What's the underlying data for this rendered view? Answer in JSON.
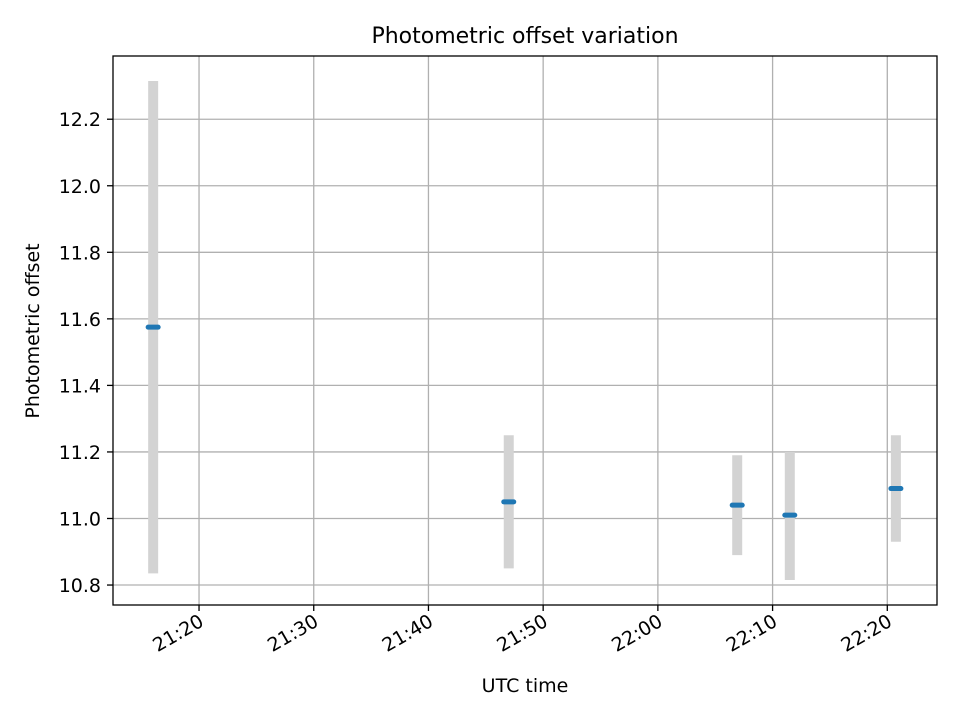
{
  "chart_data": {
    "type": "scatter",
    "title": "Photometric offset variation",
    "xlabel": "UTC time",
    "ylabel": "Photometric offset",
    "x_range": [
      "21:12:30",
      "22:24:20"
    ],
    "ylim": [
      10.74,
      12.39
    ],
    "x_ticks": [
      "21:20",
      "21:30",
      "21:40",
      "21:50",
      "22:00",
      "22:10",
      "22:20"
    ],
    "y_ticks": [
      "10.8",
      "11.0",
      "11.2",
      "11.4",
      "11.6",
      "11.8",
      "12.0",
      "12.2"
    ],
    "grid": true,
    "points": [
      {
        "time": "21:16:00",
        "offset": 11.575,
        "err_low": 10.835,
        "err_high": 12.315
      },
      {
        "time": "21:47:00",
        "offset": 11.05,
        "err_low": 10.85,
        "err_high": 11.25
      },
      {
        "time": "22:06:55",
        "offset": 11.04,
        "err_low": 10.89,
        "err_high": 11.19
      },
      {
        "time": "22:11:30",
        "offset": 11.01,
        "err_low": 10.815,
        "err_high": 11.2
      },
      {
        "time": "22:20:45",
        "offset": 11.09,
        "err_low": 10.93,
        "err_high": 11.25
      }
    ],
    "colors": {
      "marker": "#1f77b4",
      "errorbar": "#d3d3d3",
      "grid": "#b0b0b0"
    }
  }
}
